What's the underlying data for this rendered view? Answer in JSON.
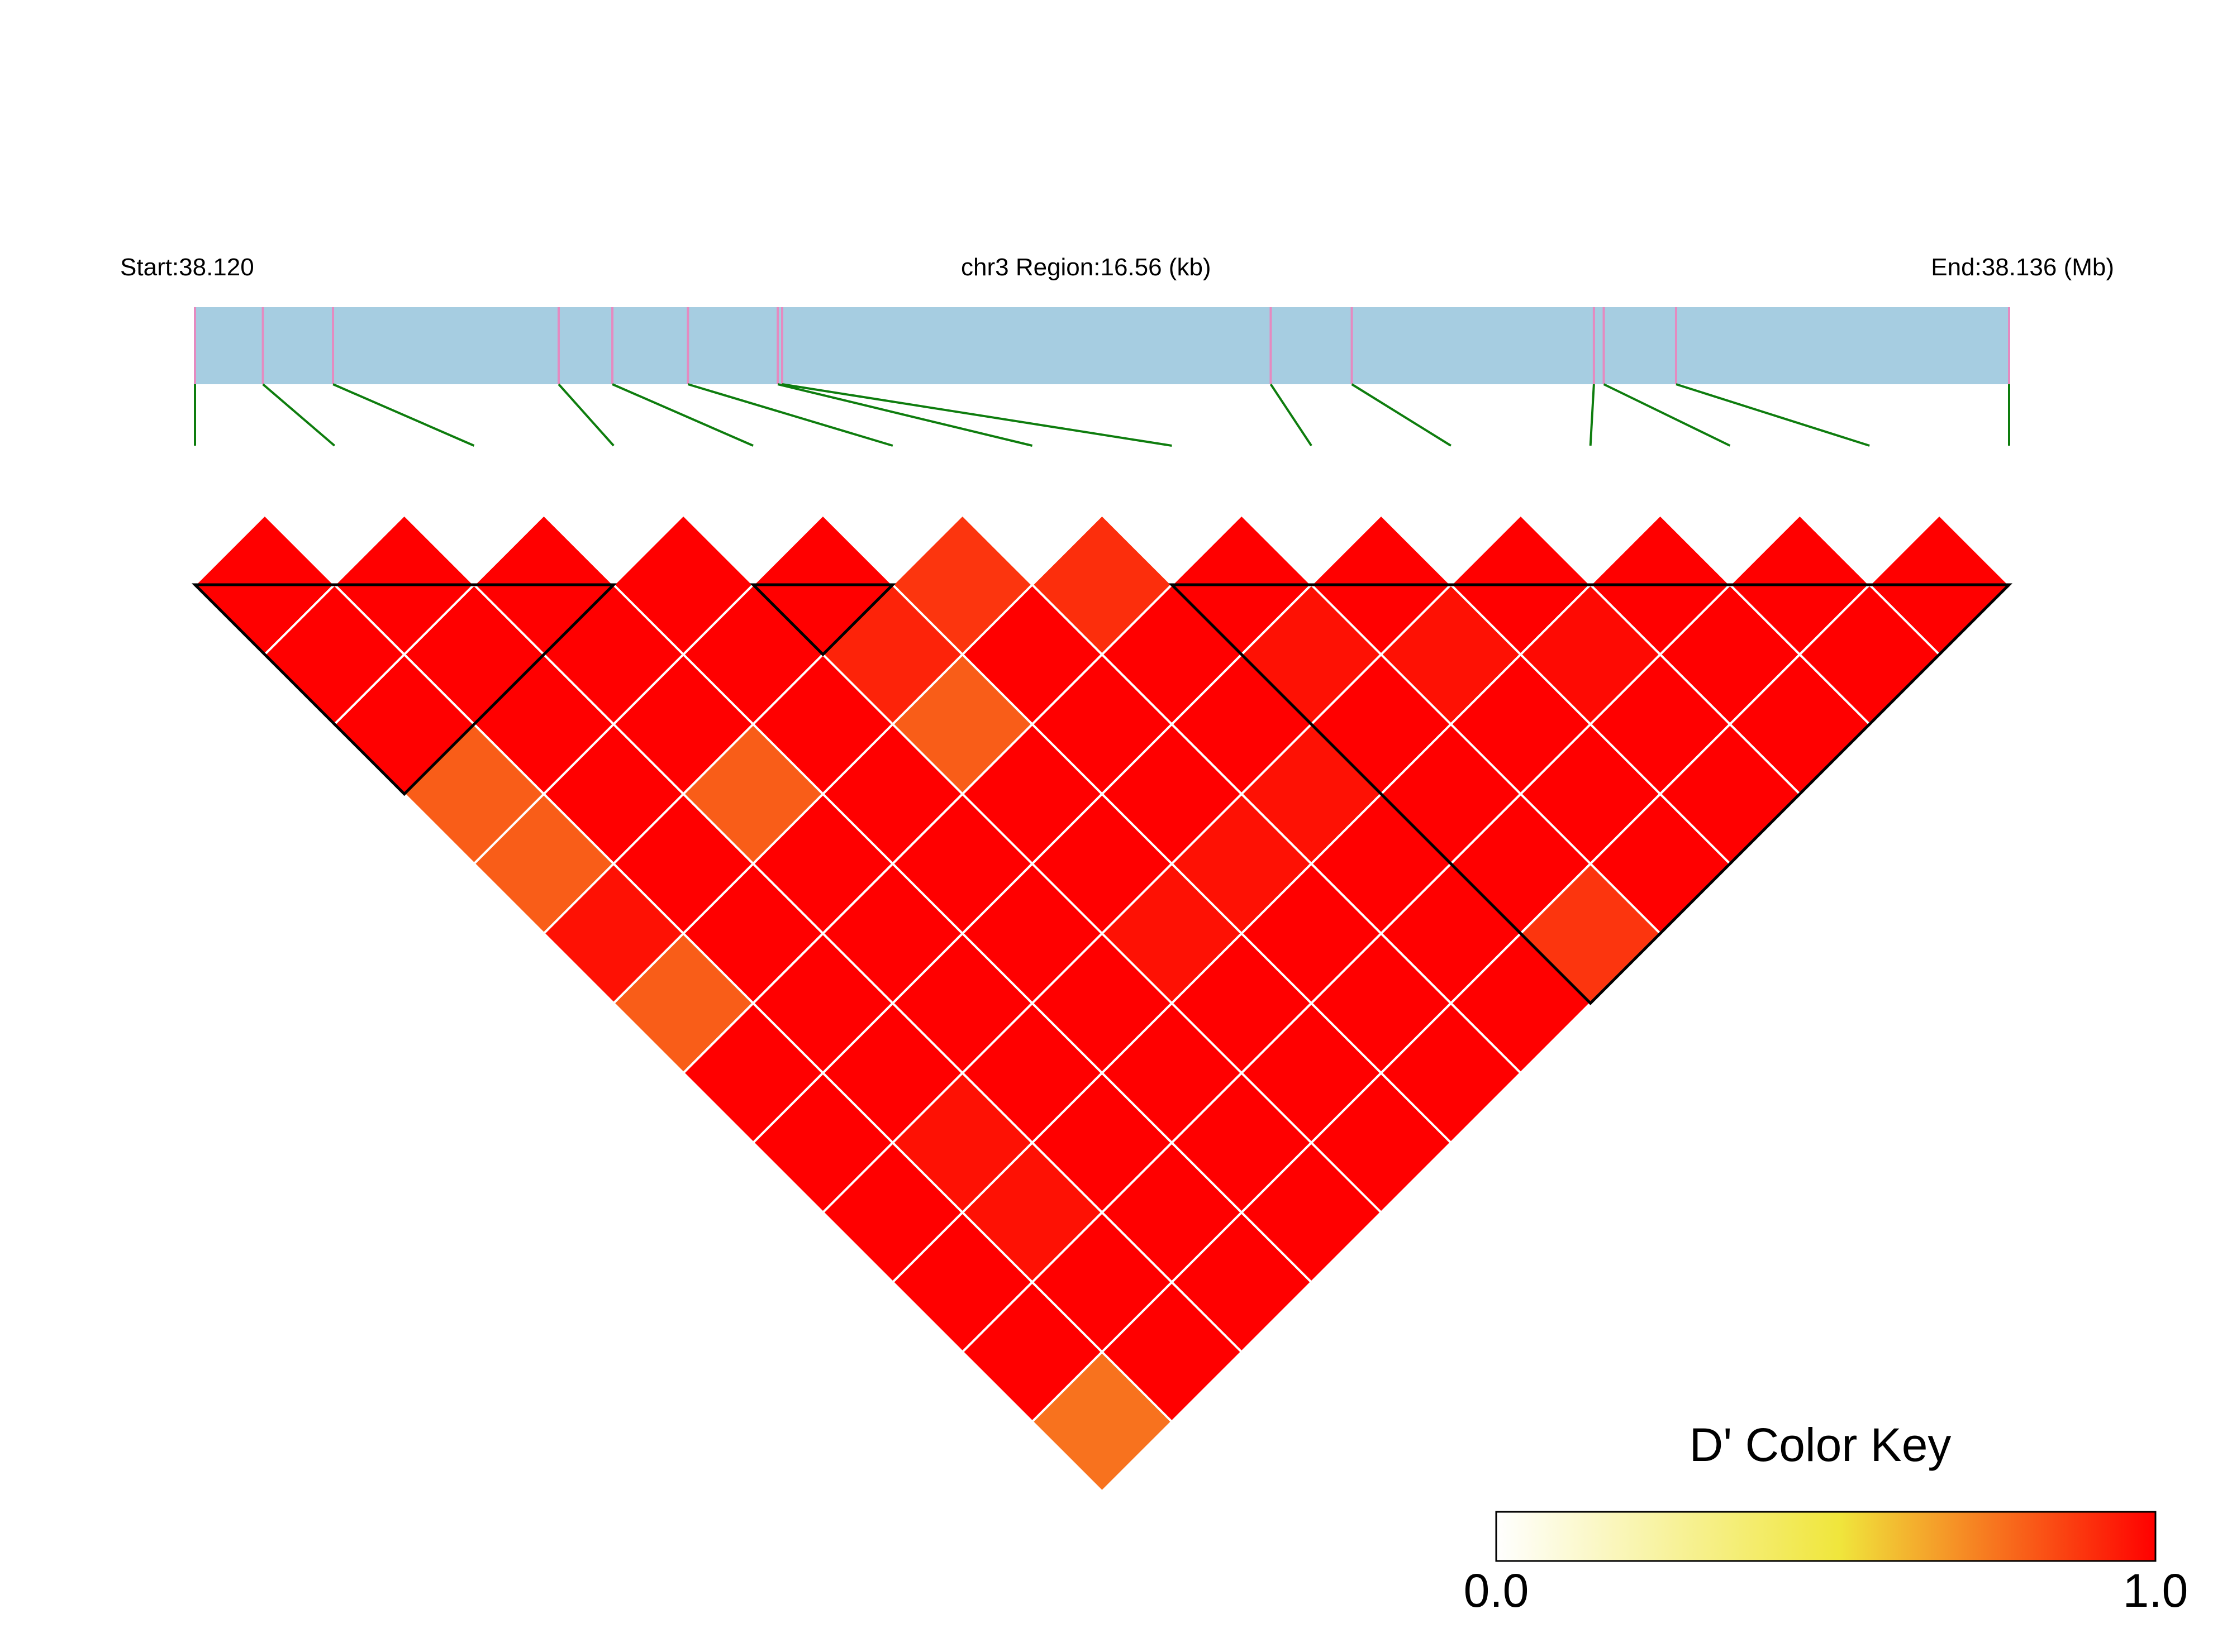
{
  "header": {
    "start_label": "Start:38.120",
    "region_label": "chr3 Region:16.56 (kb)",
    "end_label": "End:38.136 (Mb)"
  },
  "colors": {
    "track_fill": "#a6cde1",
    "snp_tick": "#e58ac0",
    "connector": "#0e7d0e",
    "cell_border": "#ffffff",
    "block_outline": "#000000",
    "key_low": "#ffffff",
    "key_mid": "#f0e63c",
    "key_high": "#ff0000"
  },
  "chart_data": {
    "type": "heatmap",
    "title": "",
    "snp_count": 14,
    "region_start_mb": 38.12,
    "region_end_mb": 38.136,
    "region_length_kb": 16.56,
    "snp_positions_kb": [
      0.0,
      0.62,
      1.26,
      3.32,
      3.81,
      4.5,
      5.32,
      5.36,
      9.82,
      10.56,
      12.77,
      12.86,
      13.52,
      16.56
    ],
    "blocks": [
      [
        1,
        4
      ],
      [
        5,
        6
      ],
      [
        8,
        14
      ]
    ],
    "dprime_matrix": [
      [
        1.0,
        1.0,
        1.0,
        0.75,
        0.75,
        0.95,
        0.75,
        1.0,
        1.0,
        1.0,
        1.0,
        1.0,
        0.7
      ],
      [
        1.0,
        1.0,
        1.0,
        1.0,
        1.0,
        1.0,
        1.0,
        1.0,
        0.95,
        0.95,
        1.0,
        1.0
      ],
      [
        1.0,
        1.0,
        1.0,
        0.75,
        1.0,
        1.0,
        1.0,
        1.0,
        1.0,
        1.0,
        1.0
      ],
      [
        1.0,
        1.0,
        1.0,
        1.0,
        1.0,
        1.0,
        1.0,
        1.0,
        1.0,
        1.0
      ],
      [
        1.0,
        0.9,
        0.75,
        1.0,
        1.0,
        0.95,
        1.0,
        1.0,
        1.0
      ],
      [
        0.85,
        1.0,
        1.0,
        1.0,
        0.95,
        1.0,
        1.0,
        1.0
      ],
      [
        0.87,
        1.0,
        1.0,
        0.95,
        1.0,
        1.0,
        1.0
      ],
      [
        1.0,
        0.95,
        1.0,
        1.0,
        1.0,
        0.85
      ],
      [
        1.0,
        0.95,
        1.0,
        1.0,
        1.0
      ],
      [
        1.0,
        0.97,
        1.0,
        1.0
      ],
      [
        1.0,
        1.0,
        1.0
      ],
      [
        1.0,
        1.0
      ],
      [
        1.0
      ]
    ],
    "color_key": {
      "title": "D' Color Key",
      "min_label": "0.0",
      "max_label": "1.0",
      "range": [
        0,
        1
      ]
    }
  }
}
